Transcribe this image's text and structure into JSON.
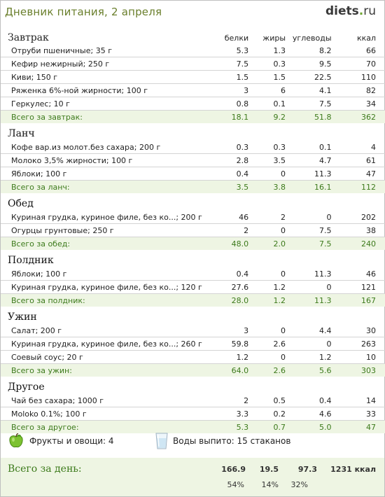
{
  "header": {
    "title": "Дневник питания, 2 апреля",
    "logo_main": "diets",
    "logo_dot": ".",
    "logo_tld": "ru"
  },
  "columns": {
    "protein": "белки",
    "fat": "жиры",
    "carbs": "углеводы",
    "kcal": "ккал"
  },
  "sections": [
    {
      "name": "Завтрак",
      "items": [
        [
          "Отруби пшеничные; 35 г",
          "5.3",
          "1.3",
          "8.2",
          "66"
        ],
        [
          "Кефир нежирный; 250 г",
          "7.5",
          "0.3",
          "9.5",
          "70"
        ],
        [
          "Киви; 150 г",
          "1.5",
          "1.5",
          "22.5",
          "110"
        ],
        [
          "Ряженка 6%-ной жирности; 100 г",
          "3",
          "6",
          "4.1",
          "82"
        ],
        [
          "Геркулес; 10 г",
          "0.8",
          "0.1",
          "7.5",
          "34"
        ]
      ],
      "total": [
        "Всего за завтрак:",
        "18.1",
        "9.2",
        "51.8",
        "362"
      ]
    },
    {
      "name": "Ланч",
      "items": [
        [
          "Кофе вар.из молот.без сахара; 200 г",
          "0.3",
          "0.3",
          "0.1",
          "4"
        ],
        [
          "Молоко 3,5% жирности; 100 г",
          "2.8",
          "3.5",
          "4.7",
          "61"
        ],
        [
          "Яблоки; 100 г",
          "0.4",
          "0",
          "11.3",
          "47"
        ]
      ],
      "total": [
        "Всего за ланч:",
        "3.5",
        "3.8",
        "16.1",
        "112"
      ]
    },
    {
      "name": "Обед",
      "items": [
        [
          "Куриная грудка, куриное филе, без ко...; 200 г",
          "46",
          "2",
          "0",
          "202"
        ],
        [
          "Огурцы грунтовые; 250 г",
          "2",
          "0",
          "7.5",
          "38"
        ]
      ],
      "total": [
        "Всего за обед:",
        "48.0",
        "2.0",
        "7.5",
        "240"
      ]
    },
    {
      "name": "Полдник",
      "items": [
        [
          "Яблоки; 100 г",
          "0.4",
          "0",
          "11.3",
          "46"
        ],
        [
          "Куриная грудка, куриное филе, без ко...; 120 г",
          "27.6",
          "1.2",
          "0",
          "121"
        ]
      ],
      "total": [
        "Всего за полдник:",
        "28.0",
        "1.2",
        "11.3",
        "167"
      ]
    },
    {
      "name": "Ужин",
      "items": [
        [
          "Салат; 200 г",
          "3",
          "0",
          "4.4",
          "30"
        ],
        [
          "Куриная грудка, куриное филе, без ко...; 260 г",
          "59.8",
          "2.6",
          "0",
          "263"
        ],
        [
          "Соевый соус; 20 г",
          "1.2",
          "0",
          "1.2",
          "10"
        ]
      ],
      "total": [
        "Всего за ужин:",
        "64.0",
        "2.6",
        "5.6",
        "303"
      ]
    },
    {
      "name": "Другое",
      "items": [
        [
          "Чай без сахара; 1000 г",
          "2",
          "0.5",
          "0.4",
          "14"
        ],
        [
          "Moloko 0.1%; 100 г",
          "3.3",
          "0.2",
          "4.6",
          "33"
        ]
      ],
      "total": [
        "Всего за другое:",
        "5.3",
        "0.7",
        "5.0",
        "47"
      ]
    }
  ],
  "footer": {
    "fruits": "Фрукты и овощи: 4",
    "water": "Воды выпито: 15 стаканов",
    "day_label": "Всего за день:",
    "protein": "166.9",
    "fat": "19.5",
    "carbs": "97.3",
    "kcal": "1231 ккал",
    "protein_pct": "54%",
    "fat_pct": "14%",
    "carbs_pct": "32%"
  },
  "colors": {
    "accent_green": "#3c7a1b",
    "total_bg": "#eef5e3",
    "title": "#6a7f2c"
  },
  "icons": {
    "apple": "green-apple-icon",
    "glass": "water-glass-icon"
  }
}
